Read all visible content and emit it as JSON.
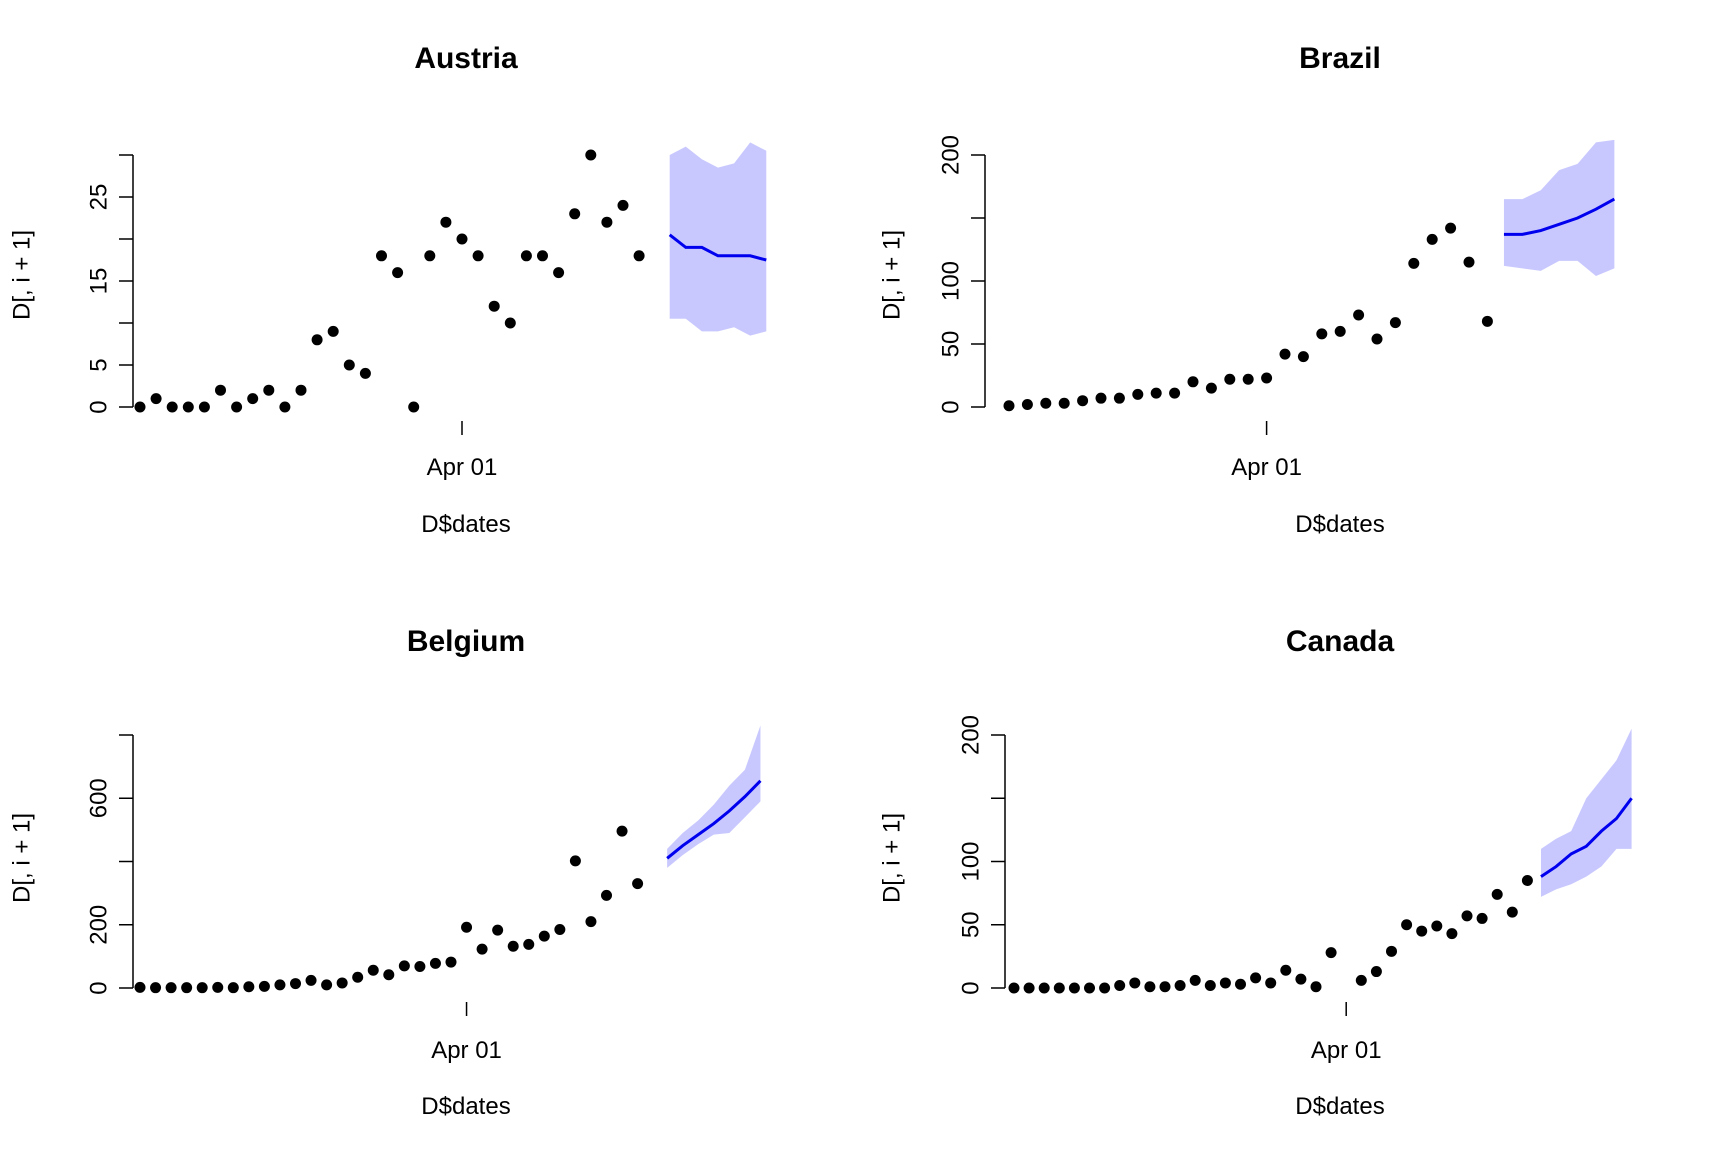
{
  "colors": {
    "points": "#000000",
    "forecast_line": "#0000ee",
    "forecast_band": "#c8c8ff",
    "axis": "#000000"
  },
  "chart_data": [
    {
      "type": "scatter",
      "title": "Austria",
      "xlabel": "D$dates",
      "ylabel": "D[, i + 1]",
      "x_ticks": [
        "Apr 01"
      ],
      "y_ticks": [
        0,
        5,
        10,
        15,
        20,
        25,
        30
      ],
      "y_tick_labels": [
        "0",
        "5",
        "",
        "15",
        "",
        "25",
        ""
      ],
      "ylim": [
        0,
        30
      ],
      "dates": [
        "Mar 12",
        "Mar 13",
        "Mar 14",
        "Mar 15",
        "Mar 16",
        "Mar 17",
        "Mar 18",
        "Mar 19",
        "Mar 20",
        "Mar 21",
        "Mar 22",
        "Mar 23",
        "Mar 24",
        "Mar 25",
        "Mar 26",
        "Mar 27",
        "Mar 28",
        "Mar 29",
        "Mar 30",
        "Mar 31",
        "Apr 01",
        "Apr 02",
        "Apr 03",
        "Apr 04",
        "Apr 05",
        "Apr 06",
        "Apr 07",
        "Apr 08",
        "Apr 09",
        "Apr 10",
        "Apr 11",
        "Apr 12",
        "Apr 13"
      ],
      "values": [
        0,
        1,
        0,
        0,
        0,
        2,
        0,
        1,
        2,
        0,
        2,
        8,
        9,
        5,
        4,
        18,
        16,
        0,
        18,
        22,
        20,
        18,
        12,
        10,
        18,
        18,
        16,
        23,
        30,
        22,
        24,
        18,
        null
      ],
      "forecast": {
        "dates": [
          "Apr 14",
          "Apr 15",
          "Apr 16",
          "Apr 17",
          "Apr 18",
          "Apr 19",
          "Apr 20"
        ],
        "mean": [
          20.5,
          19,
          19,
          18,
          18,
          18,
          17.5
        ],
        "lower": [
          10.5,
          10.5,
          9,
          9,
          9.5,
          8.5,
          9
        ],
        "upper": [
          30,
          31,
          29.5,
          28.5,
          29,
          31.5,
          30.5
        ]
      }
    },
    {
      "type": "scatter",
      "title": "Brazil",
      "xlabel": "D$dates",
      "ylabel": "D[, i + 1]",
      "x_ticks": [
        "Apr 01"
      ],
      "y_ticks": [
        0,
        50,
        100,
        150,
        200
      ],
      "y_tick_labels": [
        "0",
        "50",
        "100",
        "",
        "200"
      ],
      "ylim": [
        0,
        200
      ],
      "dates": [
        "Mar 18",
        "Mar 19",
        "Mar 20",
        "Mar 21",
        "Mar 22",
        "Mar 23",
        "Mar 24",
        "Mar 25",
        "Mar 26",
        "Mar 27",
        "Mar 28",
        "Mar 29",
        "Mar 30",
        "Mar 31",
        "Apr 01",
        "Apr 02",
        "Apr 03",
        "Apr 04",
        "Apr 05",
        "Apr 06",
        "Apr 07",
        "Apr 08",
        "Apr 09",
        "Apr 10",
        "Apr 11",
        "Apr 12",
        "Apr 13"
      ],
      "values": [
        1,
        2,
        3,
        3,
        5,
        7,
        7,
        10,
        11,
        11,
        20,
        15,
        22,
        22,
        23,
        42,
        40,
        58,
        60,
        73,
        54,
        67,
        114,
        133,
        142,
        115,
        68
      ],
      "forecast": {
        "dates": [
          "Apr 14",
          "Apr 15",
          "Apr 16",
          "Apr 17",
          "Apr 18",
          "Apr 19",
          "Apr 20"
        ],
        "mean": [
          137,
          137,
          140,
          145,
          150,
          157,
          165
        ],
        "lower": [
          112,
          110,
          108,
          116,
          116,
          104,
          110
        ],
        "upper": [
          165,
          165,
          172,
          188,
          193,
          210,
          212
        ]
      }
    },
    {
      "type": "scatter",
      "title": "Belgium",
      "xlabel": "D$dates",
      "ylabel": "D[, i + 1]",
      "x_ticks": [
        "Apr 01"
      ],
      "y_ticks": [
        0,
        200,
        400,
        600,
        800
      ],
      "y_tick_labels": [
        "0",
        "200",
        "",
        "600",
        ""
      ],
      "ylim": [
        0,
        800
      ],
      "dates": [
        "Mar 11",
        "Mar 12",
        "Mar 13",
        "Mar 14",
        "Mar 15",
        "Mar 16",
        "Mar 17",
        "Mar 18",
        "Mar 19",
        "Mar 20",
        "Mar 21",
        "Mar 22",
        "Mar 23",
        "Mar 24",
        "Mar 25",
        "Mar 26",
        "Mar 27",
        "Mar 28",
        "Mar 29",
        "Mar 30",
        "Mar 31",
        "Apr 01",
        "Apr 02",
        "Apr 03",
        "Apr 04",
        "Apr 05",
        "Apr 06",
        "Apr 07",
        "Apr 08",
        "Apr 09",
        "Apr 10",
        "Apr 11",
        "Apr 12",
        "Apr 13"
      ],
      "values": [
        2,
        1,
        1,
        1,
        1,
        2,
        1,
        4,
        5,
        10,
        14,
        24,
        10,
        16,
        34,
        56,
        42,
        70,
        68,
        78,
        82,
        192,
        123,
        183,
        132,
        138,
        164,
        185,
        402,
        210,
        293,
        496,
        330,
        null
      ],
      "forecast": {
        "dates": [
          "Apr 14",
          "Apr 15",
          "Apr 16",
          "Apr 17",
          "Apr 18",
          "Apr 19",
          "Apr 20"
        ],
        "mean": [
          410,
          450,
          485,
          520,
          560,
          605,
          655
        ],
        "lower": [
          380,
          420,
          455,
          485,
          490,
          540,
          590
        ],
        "upper": [
          440,
          490,
          530,
          580,
          640,
          690,
          830
        ]
      }
    },
    {
      "type": "scatter",
      "title": "Canada",
      "xlabel": "D$dates",
      "ylabel": "D[, i + 1]",
      "x_ticks": [
        "Apr 01"
      ],
      "y_ticks": [
        0,
        50,
        100,
        150,
        200
      ],
      "y_tick_labels": [
        "0",
        "50",
        "100",
        "",
        "200"
      ],
      "ylim": [
        0,
        200
      ],
      "dates": [
        "Mar 10",
        "Mar 11",
        "Mar 12",
        "Mar 13",
        "Mar 14",
        "Mar 15",
        "Mar 16",
        "Mar 17",
        "Mar 18",
        "Mar 19",
        "Mar 20",
        "Mar 21",
        "Mar 22",
        "Mar 23",
        "Mar 24",
        "Mar 25",
        "Mar 26",
        "Mar 27",
        "Mar 28",
        "Mar 29",
        "Mar 30",
        "Mar 31",
        "Apr 01",
        "Apr 02",
        "Apr 03",
        "Apr 04",
        "Apr 05",
        "Apr 06",
        "Apr 07",
        "Apr 08",
        "Apr 09",
        "Apr 10",
        "Apr 11",
        "Apr 12",
        "Apr 13"
      ],
      "values": [
        0,
        0,
        0,
        0,
        0,
        0,
        0,
        2,
        4,
        1,
        1,
        2,
        6,
        2,
        4,
        3,
        8,
        4,
        14,
        7,
        1,
        28,
        null,
        6,
        13,
        29,
        50,
        45,
        49,
        43,
        57,
        55,
        74,
        60,
        85
      ],
      "forecast": {
        "dates": [
          "Apr 14",
          "Apr 15",
          "Apr 16",
          "Apr 17",
          "Apr 18",
          "Apr 19",
          "Apr 20"
        ],
        "mean": [
          88,
          96,
          106,
          112,
          124,
          134,
          150
        ],
        "lower": [
          72,
          78,
          82,
          88,
          96,
          110,
          110
        ],
        "upper": [
          110,
          118,
          124,
          150,
          165,
          180,
          205
        ]
      }
    }
  ]
}
